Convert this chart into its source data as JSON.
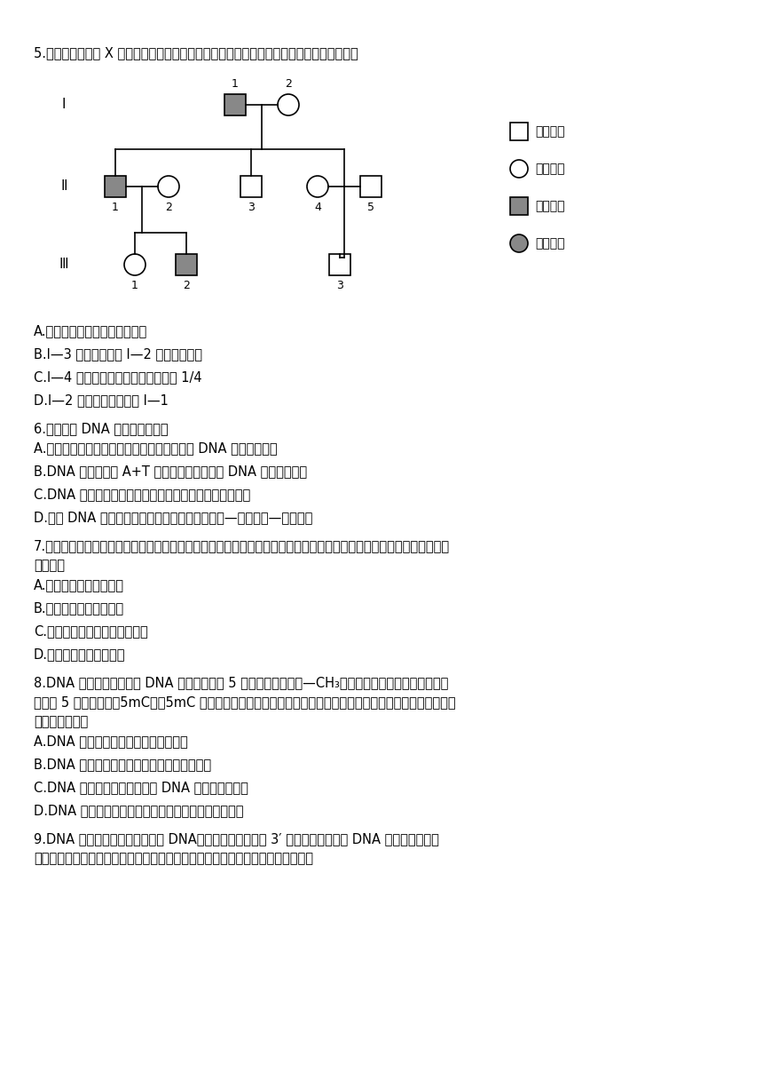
{
  "bg_color": "#ffffff",
  "q5": "5.已知血友病为伴 X 染色体隐性遗传病，下图为某血友病患者的家系图。有关分析错误的是",
  "a5": [
    "A.该病的遗传总是和性别相关联",
    "B.I—3 表现正常说明 I—2 不含致病基因",
    "C.I—4 生育出患血友病孩子的概率为 1/4",
    "D.I—2 的致病基因来自于 I—1"
  ],
  "q6": "6.下列关于 DNA 的叙述正确的是",
  "a6": [
    "A.不同类型肺炎链球菌致病性有差异的原因是 DNA 空间结构不同",
    "B.DNA 分子中碱基 A+T 的比例不同，体现了 DNA 分子的特异性",
    "C.DNA 复制过程中氢键的断裂和形成都需要相应酶的催化",
    "D.双链 DNA 分子中配对的两个碱基之间通过磷酸—脱氧核糖—磷酸连接"
  ],
  "q7": "7.新型冠状病毒侵染人体肺部细胞后，会在肺部细胞内部大量增殖。下列关于子代新型冠状病毒蛋白质外壳合成的描述，正确的是",
  "a7": [
    "A.原料来自人体肺部细胞",
    "B.能量来自新型冠状病毒",
    "C.场所是新型冠状病毒的核糖体",
    "D.模板来自人体肺部细胞"
  ],
  "q8": "8.DNA 的甲基化通常是指 DNA 链上胞嘧啶第 5 位碳原子和甲基（—CH₃）间的共价结合，胞嘧啶由此被修饰为 5 甲基胞嘧啶（5mC），5mC 仍然能够与鸟嘧啶互补配对，甲基化后可能对基因的表达产生影响。下列相关叙述错误的是",
  "a8": [
    "A.DNA 的甲基化后碱基序列未发生改变",
    "B.DNA 的甲基化都不利于细胞的正常生命活动",
    "C.DNA 的甲基化修饰可以通过 DNA 复制遗传给后代",
    "D.DNA 的甲基化通过调控基因的表达可能直接影响性状"
  ],
  "q9": "9.DNA 聚合酶不能从头开始合成 DNA，只能从已有片段的 3′ 端开始延伸，所以 DNA 复制过程中需要一小段核苷酸单链作为引物先与模板链互补配对，如下图所示。下列叙述错误的是",
  "legend": [
    {
      "label": "正常男性",
      "shape": "square",
      "color": "#ffffff"
    },
    {
      "label": "正常女性",
      "shape": "circle",
      "color": "#ffffff"
    },
    {
      "label": "男性患者",
      "shape": "square",
      "color": "#888888"
    },
    {
      "label": "女性患者",
      "shape": "circle",
      "color": "#888888"
    }
  ]
}
